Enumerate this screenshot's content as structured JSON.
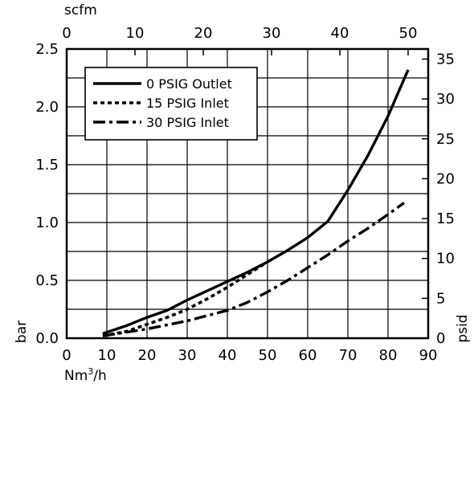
{
  "chart_data": {
    "type": "line",
    "x_axis": {
      "label": "Nm³/h",
      "label_base": "Nm",
      "label_sup": "3",
      "label_tail": "/h",
      "range": [
        0,
        90
      ],
      "ticks": [
        "0",
        "10",
        "20",
        "30",
        "40",
        "50",
        "60",
        "70",
        "80",
        "90"
      ]
    },
    "top_axis": {
      "label": "scfm",
      "ticks": [
        "0",
        "10",
        "20",
        "30",
        "40",
        "50"
      ]
    },
    "y_axis": {
      "label": "bar",
      "range": [
        0,
        2.5
      ],
      "ticks": [
        "0.0",
        "0.5",
        "1.0",
        "1.5",
        "2.0",
        "2.5"
      ]
    },
    "right_axis": {
      "label": "psid",
      "ticks": [
        "0",
        "5",
        "10",
        "15",
        "20",
        "25",
        "30",
        "35"
      ]
    },
    "grid": true,
    "legend_position": "top-left",
    "series": [
      {
        "name": "0 PSIG Outlet",
        "style": "solid",
        "points": [
          [
            9,
            0.04
          ],
          [
            15,
            0.11
          ],
          [
            20,
            0.18
          ],
          [
            25,
            0.24
          ],
          [
            30,
            0.33
          ],
          [
            35,
            0.41
          ],
          [
            40,
            0.49
          ],
          [
            45,
            0.57
          ],
          [
            50,
            0.66
          ],
          [
            55,
            0.76
          ],
          [
            60,
            0.87
          ],
          [
            65,
            1.01
          ],
          [
            70,
            1.28
          ],
          [
            75,
            1.58
          ],
          [
            80,
            1.92
          ],
          [
            85,
            2.32
          ]
        ]
      },
      {
        "name": "15 PSIG Inlet",
        "style": "dotted",
        "points": [
          [
            9,
            0.02
          ],
          [
            15,
            0.06
          ],
          [
            20,
            0.12
          ],
          [
            25,
            0.18
          ],
          [
            30,
            0.25
          ],
          [
            35,
            0.34
          ],
          [
            40,
            0.44
          ],
          [
            45,
            0.55
          ],
          [
            50,
            0.66
          ]
        ]
      },
      {
        "name": "30 PSIG Inlet",
        "style": "dash-dot",
        "points": [
          [
            9,
            0.02
          ],
          [
            20,
            0.08
          ],
          [
            30,
            0.15
          ],
          [
            40,
            0.24
          ],
          [
            45,
            0.31
          ],
          [
            50,
            0.4
          ],
          [
            55,
            0.5
          ],
          [
            60,
            0.61
          ],
          [
            65,
            0.72
          ],
          [
            70,
            0.84
          ],
          [
            75,
            0.95
          ],
          [
            80,
            1.07
          ],
          [
            84,
            1.17
          ]
        ]
      }
    ]
  }
}
